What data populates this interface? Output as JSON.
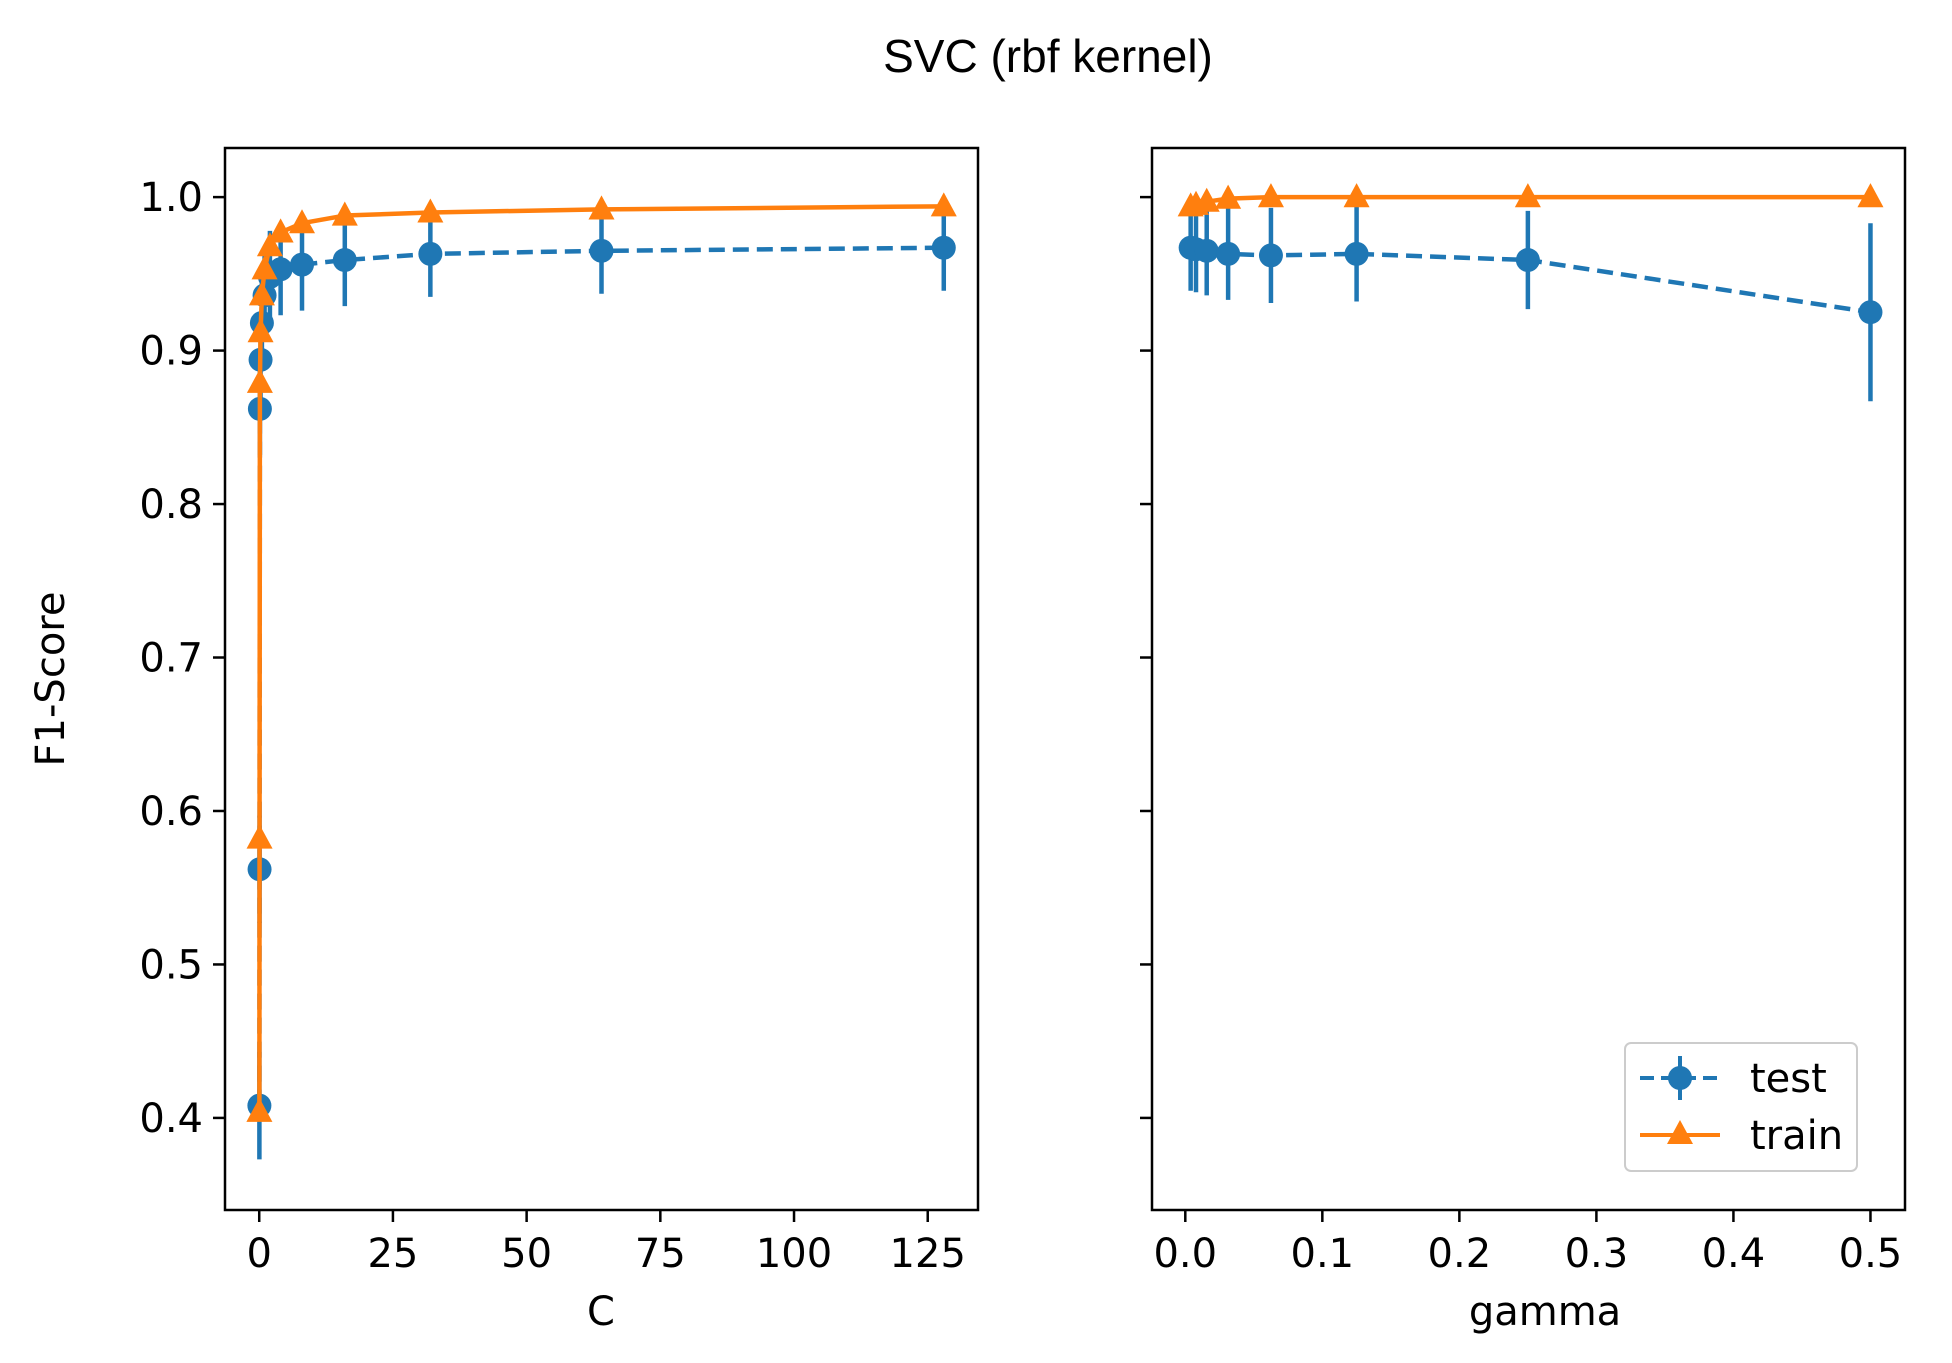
{
  "figure_title": "SVC (rbf kernel)",
  "colors": {
    "test": "#1f77b4",
    "train": "#ff7f0e",
    "axes": "#000000",
    "legend_border": "#cccccc"
  },
  "legend": {
    "test_label": "test",
    "train_label": "train",
    "placement": "lower right"
  },
  "chart_data": [
    {
      "type": "line",
      "title": "",
      "xlabel": "C",
      "ylabel": "F1-Score",
      "xlim": [
        -6.4,
        134.4
      ],
      "ylim": [
        0.34,
        1.032
      ],
      "xticks": [
        0,
        25,
        50,
        75,
        100,
        125
      ],
      "xtick_labels": [
        "0",
        "25",
        "50",
        "75",
        "100",
        "125"
      ],
      "yticks": [
        0.4,
        0.5,
        0.6,
        0.7,
        0.8,
        0.9,
        1.0
      ],
      "ytick_labels": [
        "0.4",
        "0.5",
        "0.6",
        "0.7",
        "0.8",
        "0.9",
        "1.0"
      ],
      "grid": false,
      "series": [
        {
          "name": "test",
          "marker": "circle",
          "linestyle": "dashed",
          "errorbars": true,
          "x": [
            0.03125,
            0.0625,
            0.125,
            0.25,
            0.5,
            1,
            2,
            4,
            8,
            16,
            32,
            64,
            128
          ],
          "y": [
            0.408,
            0.562,
            0.862,
            0.894,
            0.918,
            0.936,
            0.948,
            0.953,
            0.956,
            0.959,
            0.963,
            0.965,
            0.967
          ],
          "err": [
            0.035,
            0.035,
            0.03,
            0.03,
            0.03,
            0.03,
            0.03,
            0.03,
            0.03,
            0.03,
            0.028,
            0.028,
            0.028
          ]
        },
        {
          "name": "train",
          "marker": "triangle",
          "linestyle": "solid",
          "errorbars": true,
          "x": [
            0.03125,
            0.0625,
            0.125,
            0.25,
            0.5,
            1,
            2,
            4,
            8,
            16,
            32,
            64,
            128
          ],
          "y": [
            0.404,
            0.582,
            0.879,
            0.912,
            0.936,
            0.953,
            0.968,
            0.977,
            0.983,
            0.988,
            0.99,
            0.992,
            0.994
          ],
          "err": [
            0.004,
            0.004,
            0.004,
            0.004,
            0.003,
            0.003,
            0.003,
            0.003,
            0.002,
            0.002,
            0.002,
            0.002,
            0.002
          ]
        }
      ]
    },
    {
      "type": "line",
      "title": "",
      "xlabel": "gamma",
      "ylabel": "",
      "xlim": [
        -0.0243,
        0.5252
      ],
      "ylim": [
        0.34,
        1.032
      ],
      "xticks": [
        0.0,
        0.1,
        0.2,
        0.3,
        0.4,
        0.5
      ],
      "xtick_labels": [
        "0.0",
        "0.1",
        "0.2",
        "0.3",
        "0.4",
        "0.5"
      ],
      "yticks": [
        0.4,
        0.5,
        0.6,
        0.7,
        0.8,
        0.9,
        1.0
      ],
      "ytick_labels": [],
      "grid": false,
      "series": [
        {
          "name": "test",
          "marker": "circle",
          "linestyle": "dashed",
          "errorbars": true,
          "x": [
            0.00390625,
            0.0078125,
            0.015625,
            0.03125,
            0.0625,
            0.125,
            0.25,
            0.5
          ],
          "y": [
            0.967,
            0.966,
            0.965,
            0.963,
            0.962,
            0.963,
            0.959,
            0.925
          ],
          "err": [
            0.028,
            0.028,
            0.029,
            0.03,
            0.031,
            0.031,
            0.032,
            0.058
          ]
        },
        {
          "name": "train",
          "marker": "triangle",
          "linestyle": "solid",
          "errorbars": true,
          "x": [
            0.00390625,
            0.0078125,
            0.015625,
            0.03125,
            0.0625,
            0.125,
            0.25,
            0.5
          ],
          "y": [
            0.994,
            0.995,
            0.997,
            0.999,
            1.0,
            1.0,
            1.0,
            1.0
          ],
          "err": [
            0.002,
            0.002,
            0.001,
            0.001,
            0.0,
            0.0,
            0.0,
            0.0
          ]
        }
      ]
    }
  ]
}
